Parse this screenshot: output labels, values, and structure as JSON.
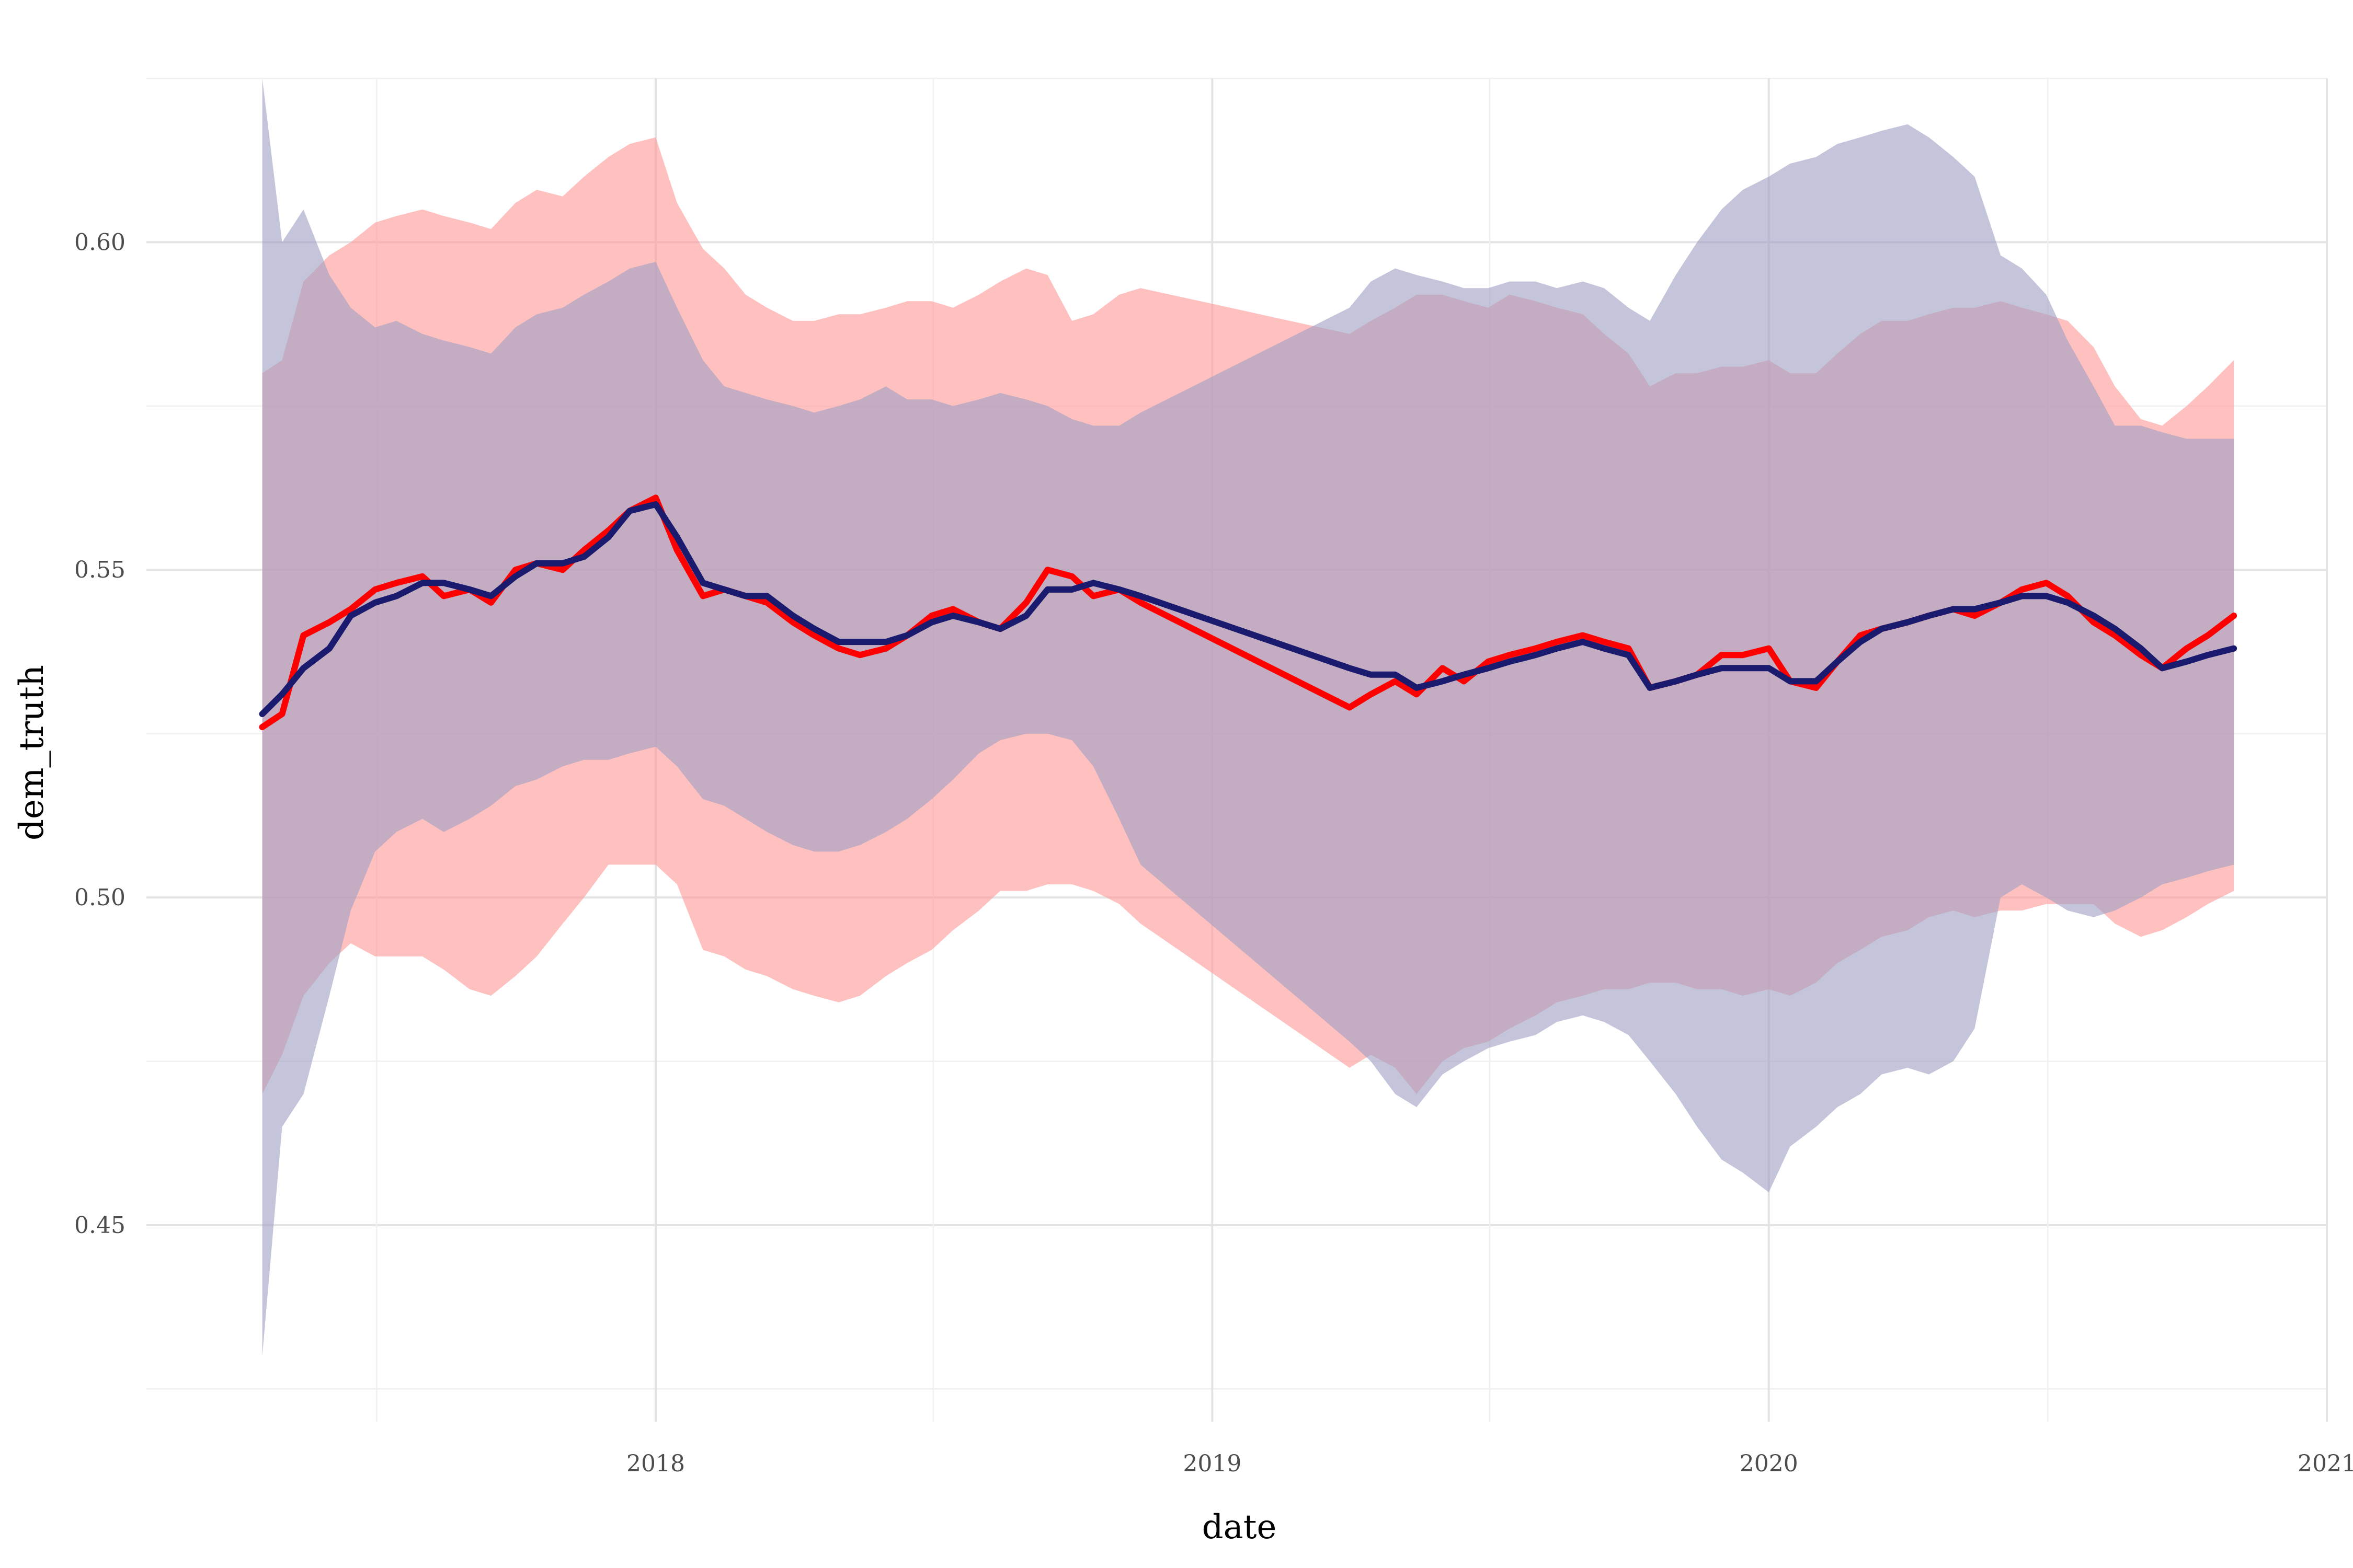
{
  "chart_data": {
    "type": "line",
    "title": "",
    "xlabel": "date",
    "ylabel": "dem_truth",
    "x_ticks": [
      "2018",
      "2019",
      "2020",
      "2021"
    ],
    "y_ticks": [
      "0.45",
      "0.50",
      "0.55",
      "0.60"
    ],
    "xlim": [
      "2017-02-01",
      "2021-01-01"
    ],
    "ylim": [
      0.42,
      0.625
    ],
    "grid": true,
    "legend": "none",
    "series": [
      {
        "color": "#ff0000",
        "ribbon_color": "#ff9999",
        "x": [
          "2017-04-18",
          "2017-05-01",
          "2017-05-15",
          "2017-06-01",
          "2017-06-15",
          "2017-07-01",
          "2017-07-15",
          "2017-08-01",
          "2017-08-15",
          "2017-09-01",
          "2017-09-15",
          "2017-10-01",
          "2017-10-15",
          "2017-11-01",
          "2017-11-15",
          "2017-12-01",
          "2017-12-15",
          "2018-01-01",
          "2018-01-15",
          "2018-02-01",
          "2018-02-15",
          "2018-03-01",
          "2018-03-15",
          "2018-04-01",
          "2018-04-15",
          "2018-05-01",
          "2018-05-15",
          "2018-06-01",
          "2018-06-15",
          "2018-07-01",
          "2018-07-15",
          "2018-08-01",
          "2018-08-15",
          "2018-09-01",
          "2018-09-15",
          "2018-10-01",
          "2018-10-15",
          "2018-11-01",
          "2018-11-15",
          "2019-04-01",
          "2019-04-15",
          "2019-05-01",
          "2019-05-15",
          "2019-06-01",
          "2019-06-15",
          "2019-07-01",
          "2019-07-15",
          "2019-08-01",
          "2019-08-15",
          "2019-09-01",
          "2019-09-15",
          "2019-10-01",
          "2019-10-15",
          "2019-11-01",
          "2019-11-15",
          "2019-12-01",
          "2019-12-15",
          "2020-01-01",
          "2020-01-15",
          "2020-02-01",
          "2020-02-15",
          "2020-03-01",
          "2020-03-15",
          "2020-04-01",
          "2020-04-15",
          "2020-05-01",
          "2020-05-15",
          "2020-06-01",
          "2020-06-15",
          "2020-07-01",
          "2020-07-15",
          "2020-08-01",
          "2020-08-15",
          "2020-09-01",
          "2020-09-15",
          "2020-10-01",
          "2020-10-15",
          "2020-11-01"
        ],
        "y": [
          0.526,
          0.528,
          0.54,
          0.542,
          0.544,
          0.547,
          0.548,
          0.549,
          0.546,
          0.547,
          0.545,
          0.55,
          0.551,
          0.55,
          0.553,
          0.556,
          0.559,
          0.561,
          0.553,
          0.546,
          0.547,
          0.546,
          0.545,
          0.542,
          0.54,
          0.538,
          0.537,
          0.538,
          0.54,
          0.543,
          0.544,
          0.542,
          0.541,
          0.545,
          0.55,
          0.549,
          0.546,
          0.547,
          0.545,
          0.529,
          0.531,
          0.533,
          0.531,
          0.535,
          0.533,
          0.536,
          0.537,
          0.538,
          0.539,
          0.54,
          0.539,
          0.538,
          0.532,
          0.533,
          0.534,
          0.537,
          0.537,
          0.538,
          0.533,
          0.532,
          0.536,
          0.54,
          0.541,
          0.542,
          0.543,
          0.544,
          0.543,
          0.545,
          0.547,
          0.548,
          0.546,
          0.542,
          0.54,
          0.537,
          0.535,
          0.538,
          0.54,
          0.543
        ],
        "lower": [
          0.47,
          0.476,
          0.485,
          0.49,
          0.493,
          0.491,
          0.491,
          0.491,
          0.489,
          0.486,
          0.485,
          0.488,
          0.491,
          0.496,
          0.5,
          0.505,
          0.505,
          0.505,
          0.502,
          0.492,
          0.491,
          0.489,
          0.488,
          0.486,
          0.485,
          0.484,
          0.485,
          0.488,
          0.49,
          0.492,
          0.495,
          0.498,
          0.501,
          0.501,
          0.502,
          0.502,
          0.501,
          0.499,
          0.496,
          0.474,
          0.476,
          0.474,
          0.47,
          0.475,
          0.477,
          0.478,
          0.48,
          0.482,
          0.484,
          0.485,
          0.486,
          0.486,
          0.487,
          0.487,
          0.486,
          0.486,
          0.485,
          0.486,
          0.485,
          0.487,
          0.49,
          0.492,
          0.494,
          0.495,
          0.497,
          0.498,
          0.497,
          0.498,
          0.498,
          0.499,
          0.499,
          0.499,
          0.496,
          0.494,
          0.495,
          0.497,
          0.499,
          0.501
        ],
        "upper": [
          0.58,
          0.582,
          0.594,
          0.598,
          0.6,
          0.603,
          0.604,
          0.605,
          0.604,
          0.603,
          0.602,
          0.606,
          0.608,
          0.607,
          0.61,
          0.613,
          0.615,
          0.616,
          0.606,
          0.599,
          0.596,
          0.592,
          0.59,
          0.588,
          0.588,
          0.589,
          0.589,
          0.59,
          0.591,
          0.591,
          0.59,
          0.592,
          0.594,
          0.596,
          0.595,
          0.588,
          0.589,
          0.592,
          0.593,
          0.586,
          0.588,
          0.59,
          0.592,
          0.592,
          0.591,
          0.59,
          0.592,
          0.591,
          0.59,
          0.589,
          0.586,
          0.583,
          0.578,
          0.58,
          0.58,
          0.581,
          0.581,
          0.582,
          0.58,
          0.58,
          0.583,
          0.586,
          0.588,
          0.588,
          0.589,
          0.59,
          0.59,
          0.591,
          0.59,
          0.589,
          0.588,
          0.584,
          0.578,
          0.573,
          0.572,
          0.575,
          0.578,
          0.582
        ]
      },
      {
        "color": "#1a1a6e",
        "ribbon_color": "#9fa0c4",
        "x": [
          "2017-04-18",
          "2017-05-01",
          "2017-05-15",
          "2017-06-01",
          "2017-06-15",
          "2017-07-01",
          "2017-07-15",
          "2017-08-01",
          "2017-08-15",
          "2017-09-01",
          "2017-09-15",
          "2017-10-01",
          "2017-10-15",
          "2017-11-01",
          "2017-11-15",
          "2017-12-01",
          "2017-12-15",
          "2018-01-01",
          "2018-01-15",
          "2018-02-01",
          "2018-02-15",
          "2018-03-01",
          "2018-03-15",
          "2018-04-01",
          "2018-04-15",
          "2018-05-01",
          "2018-05-15",
          "2018-06-01",
          "2018-06-15",
          "2018-07-01",
          "2018-07-15",
          "2018-08-01",
          "2018-08-15",
          "2018-09-01",
          "2018-09-15",
          "2018-10-01",
          "2018-10-15",
          "2018-11-01",
          "2018-11-15",
          "2019-04-01",
          "2019-04-15",
          "2019-05-01",
          "2019-05-15",
          "2019-06-01",
          "2019-06-15",
          "2019-07-01",
          "2019-07-15",
          "2019-08-01",
          "2019-08-15",
          "2019-09-01",
          "2019-09-15",
          "2019-10-01",
          "2019-10-15",
          "2019-11-01",
          "2019-11-15",
          "2019-12-01",
          "2019-12-15",
          "2020-01-01",
          "2020-01-15",
          "2020-02-01",
          "2020-02-15",
          "2020-03-01",
          "2020-03-15",
          "2020-04-01",
          "2020-04-15",
          "2020-05-01",
          "2020-05-15",
          "2020-06-01",
          "2020-06-15",
          "2020-07-01",
          "2020-07-15",
          "2020-08-01",
          "2020-08-15",
          "2020-09-01",
          "2020-09-15",
          "2020-10-01",
          "2020-10-15",
          "2020-11-01"
        ],
        "y": [
          0.528,
          0.531,
          0.535,
          0.538,
          0.543,
          0.545,
          0.546,
          0.548,
          0.548,
          0.547,
          0.546,
          0.549,
          0.551,
          0.551,
          0.552,
          0.555,
          0.559,
          0.56,
          0.555,
          0.548,
          0.547,
          0.546,
          0.546,
          0.543,
          0.541,
          0.539,
          0.539,
          0.539,
          0.54,
          0.542,
          0.543,
          0.542,
          0.541,
          0.543,
          0.547,
          0.547,
          0.548,
          0.547,
          0.546,
          0.535,
          0.534,
          0.534,
          0.532,
          0.533,
          0.534,
          0.535,
          0.536,
          0.537,
          0.538,
          0.539,
          0.538,
          0.537,
          0.532,
          0.533,
          0.534,
          0.535,
          0.535,
          0.535,
          0.533,
          0.533,
          0.536,
          0.539,
          0.541,
          0.542,
          0.543,
          0.544,
          0.544,
          0.545,
          0.546,
          0.546,
          0.545,
          0.543,
          0.541,
          0.538,
          0.535,
          0.536,
          0.537,
          0.538
        ],
        "lower": [
          0.43,
          0.465,
          0.47,
          0.485,
          0.498,
          0.507,
          0.51,
          0.512,
          0.51,
          0.512,
          0.514,
          0.517,
          0.518,
          0.52,
          0.521,
          0.521,
          0.522,
          0.523,
          0.52,
          0.515,
          0.514,
          0.512,
          0.51,
          0.508,
          0.507,
          0.507,
          0.508,
          0.51,
          0.512,
          0.515,
          0.518,
          0.522,
          0.524,
          0.525,
          0.525,
          0.524,
          0.52,
          0.512,
          0.505,
          0.478,
          0.475,
          0.47,
          0.468,
          0.473,
          0.475,
          0.477,
          0.478,
          0.479,
          0.481,
          0.482,
          0.481,
          0.479,
          0.475,
          0.47,
          0.465,
          0.46,
          0.458,
          0.455,
          0.462,
          0.465,
          0.468,
          0.47,
          0.473,
          0.474,
          0.473,
          0.475,
          0.48,
          0.5,
          0.502,
          0.5,
          0.498,
          0.497,
          0.498,
          0.5,
          0.502,
          0.503,
          0.504,
          0.505
        ],
        "upper": [
          0.625,
          0.6,
          0.605,
          0.595,
          0.59,
          0.587,
          0.588,
          0.586,
          0.585,
          0.584,
          0.583,
          0.587,
          0.589,
          0.59,
          0.592,
          0.594,
          0.596,
          0.597,
          0.59,
          0.582,
          0.578,
          0.577,
          0.576,
          0.575,
          0.574,
          0.575,
          0.576,
          0.578,
          0.576,
          0.576,
          0.575,
          0.576,
          0.577,
          0.576,
          0.575,
          0.573,
          0.572,
          0.572,
          0.574,
          0.59,
          0.594,
          0.596,
          0.595,
          0.594,
          0.593,
          0.593,
          0.594,
          0.594,
          0.593,
          0.594,
          0.593,
          0.59,
          0.588,
          0.595,
          0.6,
          0.605,
          0.608,
          0.61,
          0.612,
          0.613,
          0.615,
          0.616,
          0.617,
          0.618,
          0.616,
          0.613,
          0.61,
          0.598,
          0.596,
          0.592,
          0.585,
          0.578,
          0.572,
          0.572,
          0.571,
          0.57,
          0.57,
          0.57
        ]
      }
    ]
  }
}
